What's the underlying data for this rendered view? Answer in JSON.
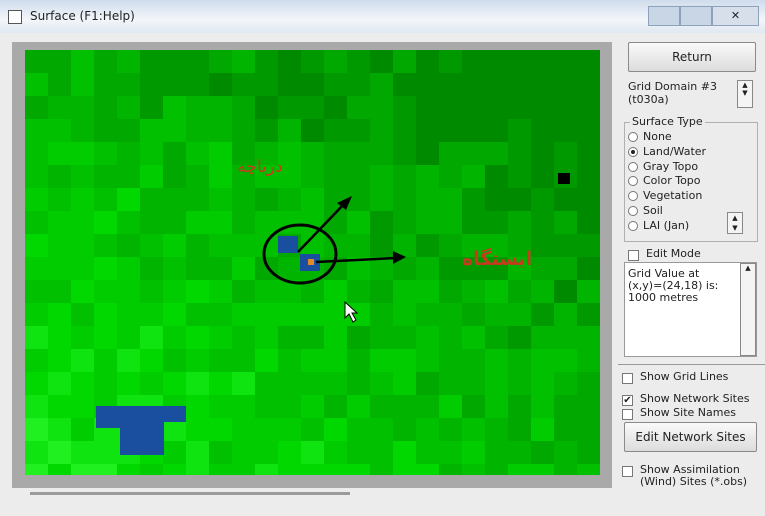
{
  "window": {
    "title": "Surface (F1:Help)"
  },
  "map": {
    "annotations": {
      "lake": "دریاچه",
      "station": "ایستگاه"
    }
  },
  "panel": {
    "return_button": "Return",
    "grid_domain": "Grid Domain #3 (t030a)",
    "surface_type": {
      "title": "Surface Type",
      "options": [
        {
          "label": "None",
          "checked": false
        },
        {
          "label": "Land/Water",
          "checked": true
        },
        {
          "label": "Gray Topo",
          "checked": false
        },
        {
          "label": "Color Topo",
          "checked": false
        },
        {
          "label": "Vegetation",
          "checked": false
        },
        {
          "label": "Soil",
          "checked": false
        },
        {
          "label": "LAI (Jan)",
          "checked": false
        }
      ]
    },
    "edit_mode": {
      "label": "Edit Mode",
      "checked": false
    },
    "grid_value": "Grid Value at (x,y)=(24,18) is: 1000 metres",
    "checkboxes": [
      {
        "label": "Show Grid Lines",
        "checked": false
      },
      {
        "label": "Show Network Sites",
        "checked": true
      },
      {
        "label": "Show Site Names",
        "checked": false
      }
    ],
    "edit_sites_button": "Edit Network Sites",
    "assimilation": {
      "label": "Show Assimilation (Wind) Sites (*.obs)",
      "checked": false
    }
  }
}
